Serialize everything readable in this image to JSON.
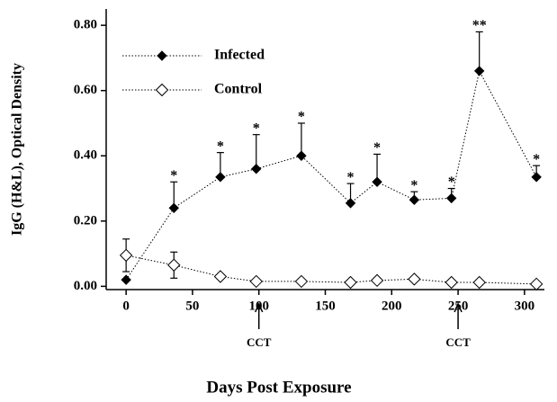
{
  "chart_data": {
    "type": "line",
    "x_label": "Days Post Exposure",
    "y_label": "IgG (H&L), Optical Density",
    "xlim": [
      -15,
      315
    ],
    "xticks": [
      0,
      50,
      100,
      150,
      200,
      250,
      300
    ],
    "ylim": [
      -0.01,
      0.85
    ],
    "yticks": [
      {
        "value": 0,
        "label": "0.00"
      },
      {
        "value": 0.2,
        "label": "0.20"
      },
      {
        "value": 0.4,
        "label": "0.40"
      },
      {
        "value": 0.6,
        "label": "0.60"
      },
      {
        "value": 0.8,
        "label": "0.80"
      }
    ],
    "legend": "top-left",
    "series": [
      {
        "name": "Infected",
        "color": "#000000",
        "marker": "filled",
        "error_bars": "up",
        "x": [
          0,
          36,
          71,
          98,
          132,
          169,
          189,
          217,
          245,
          266,
          309
        ],
        "values": [
          0.02,
          0.24,
          0.335,
          0.36,
          0.4,
          0.255,
          0.32,
          0.265,
          0.27,
          0.66,
          0.335
        ],
        "errors": [
          0,
          0.08,
          0.075,
          0.105,
          0.1,
          0.06,
          0.085,
          0.025,
          0.03,
          0.12,
          0.035
        ],
        "annotations": [
          null,
          "*",
          "*",
          "*",
          "*",
          "*",
          "*",
          "*",
          "*",
          "**",
          "*"
        ]
      },
      {
        "name": "Control",
        "color": "#000000",
        "marker": "open",
        "error_bars": "both",
        "x": [
          0,
          36,
          71,
          98,
          132,
          169,
          189,
          217,
          245,
          266,
          309
        ],
        "values": [
          0.095,
          0.065,
          0.03,
          0.015,
          0.015,
          0.012,
          0.018,
          0.022,
          0.012,
          0.012,
          0.007
        ],
        "errors": [
          0.05,
          0.04,
          0,
          0,
          0,
          0,
          0,
          0,
          0,
          0,
          0
        ]
      }
    ],
    "markers": [
      {
        "x": 100,
        "label": "CCT"
      },
      {
        "x": 250,
        "label": "CCT"
      }
    ]
  }
}
